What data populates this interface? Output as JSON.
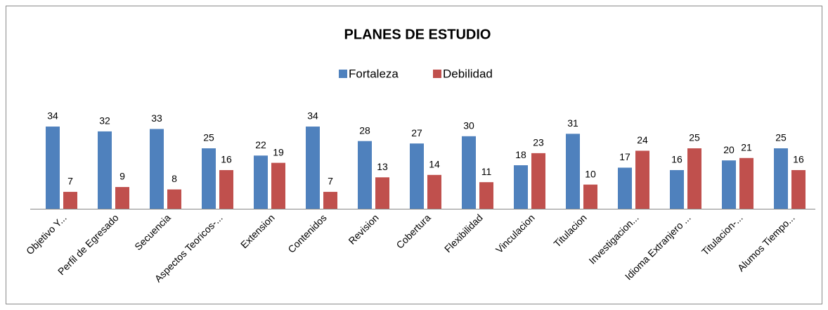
{
  "chart_data": {
    "type": "bar",
    "title": "PLANES DE ESTUDIO",
    "categories": [
      "Objetivo Y...",
      "Perfil de Egresado",
      "Secuencia",
      "Aspectos Teoricos-...",
      "Extension",
      "Contenidos",
      "Revision",
      "Cobertura",
      "Flexibilidad",
      "Vinculacion",
      "Titulacion",
      "Investigacion...",
      "Idioma Extranjero ...",
      "Titulacion-...",
      "Alumos Tiempo..."
    ],
    "series": [
      {
        "name": "Fortaleza",
        "color": "#4f81bd",
        "values": [
          34,
          32,
          33,
          25,
          22,
          34,
          28,
          27,
          30,
          18,
          31,
          17,
          16,
          20,
          25
        ]
      },
      {
        "name": "Debilidad",
        "color": "#c0504d",
        "values": [
          7,
          9,
          8,
          16,
          19,
          7,
          13,
          14,
          11,
          23,
          10,
          24,
          25,
          21,
          16
        ]
      }
    ],
    "legend": "top"
  }
}
